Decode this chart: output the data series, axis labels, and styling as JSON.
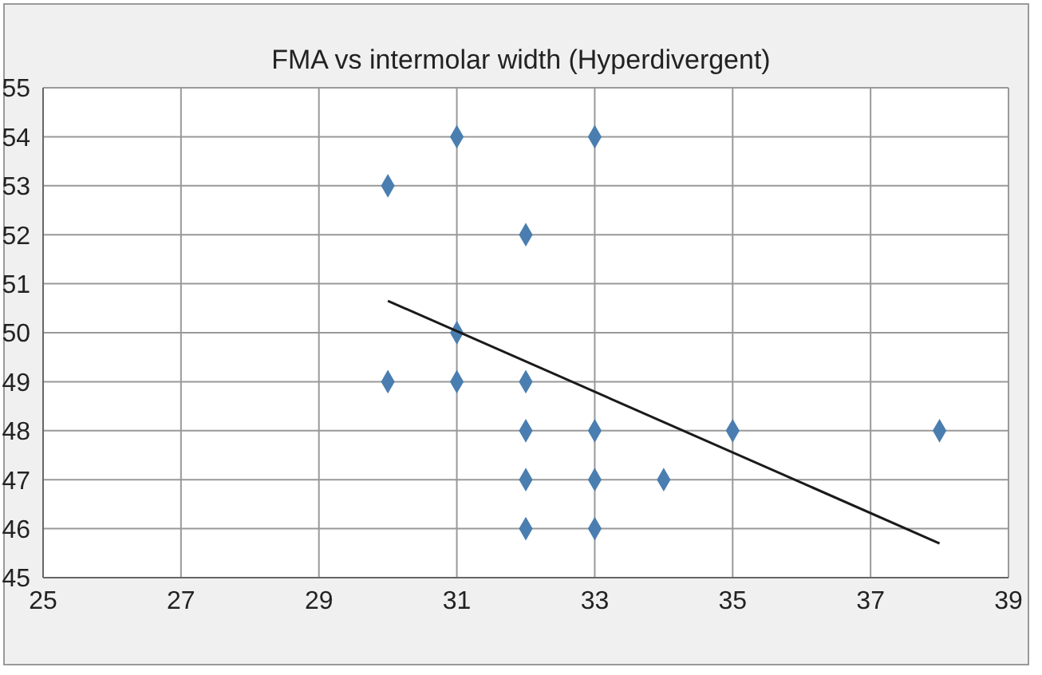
{
  "chart_data": {
    "type": "scatter",
    "title": "FMA vs intermolar width (Hyperdivergent)",
    "xlim": [
      25,
      39
    ],
    "xticks": [
      25,
      27,
      29,
      31,
      33,
      35,
      37,
      39
    ],
    "ylim": [
      45,
      55
    ],
    "yticks": [
      45,
      46,
      47,
      48,
      49,
      50,
      51,
      52,
      53,
      54,
      55
    ],
    "grid": true,
    "marker": "diamond",
    "series": [
      {
        "color": "#4a7eb0",
        "x": [
          30,
          30,
          31,
          31,
          31,
          32,
          32,
          32,
          32,
          32,
          33,
          33,
          33,
          33,
          34,
          35,
          38
        ],
        "values": [
          53,
          49,
          54,
          50,
          49,
          52,
          49,
          48,
          47,
          46,
          54,
          48,
          47,
          46,
          47,
          48,
          48
        ]
      },
      {
        "type": "line",
        "color": "#1a1a1a",
        "marker": "none",
        "line_style": "solid",
        "x": [
          30,
          38
        ],
        "values": [
          50.65,
          45.7
        ]
      }
    ]
  }
}
